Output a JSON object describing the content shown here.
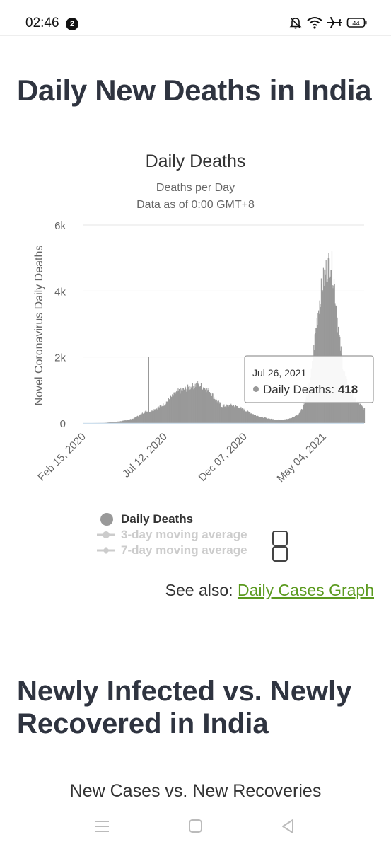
{
  "status_bar": {
    "time": "02:46",
    "notification_count": "2",
    "battery_level": "44"
  },
  "page": {
    "title": "Daily New Deaths in India"
  },
  "chart": {
    "title": "Daily Deaths",
    "subtitle_line1": "Deaths per Day",
    "subtitle_line2": "Data as of 0:00 GMT+8",
    "ylabel": "Novel Coronavirus Daily Deaths",
    "bar_color": "#999999",
    "tooltip": {
      "date": "Jul 26, 2021",
      "series_label": "Daily Deaths: ",
      "value": "418"
    },
    "legend": [
      {
        "label": "Daily Deaths",
        "enabled": true
      },
      {
        "label": "3-day moving average",
        "enabled": false
      },
      {
        "label": "7-day moving average",
        "enabled": false
      }
    ]
  },
  "chart_data": {
    "type": "bar",
    "title": "Daily Deaths",
    "subtitle": "Deaths per Day · Data as of 0:00 GMT+8",
    "xlabel": "",
    "ylabel": "Novel Coronavirus Daily Deaths",
    "x_range": [
      "2020-02-15",
      "2021-07-26"
    ],
    "ylim": [
      0,
      6000
    ],
    "y_ticks": [
      0,
      2000,
      4000,
      6000
    ],
    "y_tick_labels": [
      "0",
      "2k",
      "4k",
      "6k"
    ],
    "x_tick_labels": [
      "Feb 15, 2020",
      "Jul 12, 2020",
      "Dec 07, 2020",
      "May 04, 2021"
    ],
    "series": [
      {
        "name": "Daily Deaths",
        "points": [
          [
            "2020-02-15",
            0
          ],
          [
            "2020-03-01",
            0
          ],
          [
            "2020-03-15",
            2
          ],
          [
            "2020-03-25",
            4
          ],
          [
            "2020-04-01",
            15
          ],
          [
            "2020-04-10",
            30
          ],
          [
            "2020-04-20",
            45
          ],
          [
            "2020-05-01",
            70
          ],
          [
            "2020-05-10",
            100
          ],
          [
            "2020-05-20",
            140
          ],
          [
            "2020-06-01",
            250
          ],
          [
            "2020-06-10",
            350
          ],
          [
            "2020-06-17",
            2000
          ],
          [
            "2020-06-18",
            340
          ],
          [
            "2020-06-25",
            400
          ],
          [
            "2020-07-05",
            470
          ],
          [
            "2020-07-15",
            560
          ],
          [
            "2020-07-25",
            720
          ],
          [
            "2020-08-01",
            820
          ],
          [
            "2020-08-10",
            950
          ],
          [
            "2020-08-20",
            1000
          ],
          [
            "2020-08-27",
            1050
          ],
          [
            "2020-09-05",
            1100
          ],
          [
            "2020-09-12",
            1150
          ],
          [
            "2020-09-18",
            1200
          ],
          [
            "2020-09-25",
            1100
          ],
          [
            "2020-10-01",
            1050
          ],
          [
            "2020-10-10",
            950
          ],
          [
            "2020-10-20",
            720
          ],
          [
            "2020-11-01",
            520
          ],
          [
            "2020-11-10",
            520
          ],
          [
            "2020-11-20",
            540
          ],
          [
            "2020-12-01",
            500
          ],
          [
            "2020-12-10",
            420
          ],
          [
            "2020-12-20",
            340
          ],
          [
            "2021-01-01",
            250
          ],
          [
            "2021-01-15",
            180
          ],
          [
            "2021-02-01",
            120
          ],
          [
            "2021-02-15",
            100
          ],
          [
            "2021-03-01",
            110
          ],
          [
            "2021-03-15",
            170
          ],
          [
            "2021-03-25",
            280
          ],
          [
            "2021-04-01",
            460
          ],
          [
            "2021-04-10",
            850
          ],
          [
            "2021-04-18",
            1600
          ],
          [
            "2021-04-25",
            2700
          ],
          [
            "2021-05-01",
            3500
          ],
          [
            "2021-05-07",
            4100
          ],
          [
            "2021-05-14",
            4600
          ],
          [
            "2021-05-20",
            4800
          ],
          [
            "2021-05-24",
            4950
          ],
          [
            "2021-05-30",
            4300
          ],
          [
            "2021-06-05",
            3200
          ],
          [
            "2021-06-10",
            2400
          ],
          [
            "2021-06-15",
            1800
          ],
          [
            "2021-06-20",
            1400
          ],
          [
            "2021-06-27",
            1000
          ],
          [
            "2021-07-05",
            800
          ],
          [
            "2021-07-12",
            650
          ],
          [
            "2021-07-20",
            520
          ],
          [
            "2021-07-26",
            418
          ]
        ]
      }
    ],
    "legend_placement": "bottom",
    "grid": true
  },
  "see_also": {
    "prefix": "See also: ",
    "link_text": "Daily Cases Graph"
  },
  "section2": {
    "title": "Newly Infected vs. Newly Recovered in India",
    "chart_title": "New Cases vs. New Recoveries"
  },
  "nav_bar": {
    "icons": [
      "menu-icon",
      "home-icon",
      "back-icon"
    ]
  }
}
